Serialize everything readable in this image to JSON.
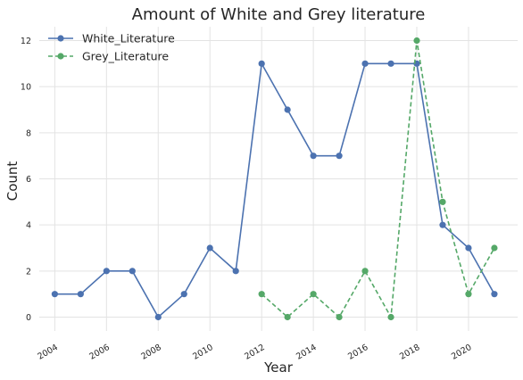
{
  "chart_data": {
    "type": "line",
    "title": "Amount of White and Grey literature",
    "xlabel": "Year",
    "ylabel": "Count",
    "xlim": [
      2003.4,
      2021.9
    ],
    "ylim": [
      -0.6,
      12.6
    ],
    "x_ticks": [
      2004,
      2006,
      2008,
      2010,
      2012,
      2014,
      2016,
      2018,
      2020
    ],
    "x_tick_labels": [
      "2004",
      "2006",
      "2008",
      "2010",
      "2012",
      "2014",
      "2016",
      "2018",
      "2020"
    ],
    "y_ticks": [
      0,
      2,
      4,
      6,
      8,
      10,
      12
    ],
    "y_tick_labels": [
      "0",
      "2",
      "4",
      "6",
      "8",
      "10",
      "12"
    ],
    "grid": true,
    "legend_position": "top-left",
    "series": [
      {
        "name": "White_Literature",
        "color": "#4c72b0",
        "line_style": "solid",
        "x": [
          2004,
          2005,
          2006,
          2007,
          2008,
          2009,
          2010,
          2011,
          2012,
          2013,
          2014,
          2015,
          2016,
          2017,
          2018,
          2019,
          2020,
          2021
        ],
        "y": [
          1,
          1,
          2,
          2,
          0,
          1,
          3,
          2,
          11,
          9,
          7,
          7,
          11,
          11,
          11,
          4,
          3,
          1
        ]
      },
      {
        "name": "Grey_Literature",
        "color": "#55a868",
        "line_style": "dashed",
        "x": [
          2012,
          2013,
          2014,
          2015,
          2016,
          2017,
          2018,
          2019,
          2020,
          2021
        ],
        "y": [
          1,
          0,
          1,
          0,
          2,
          0,
          12,
          5,
          1,
          3
        ]
      }
    ]
  }
}
